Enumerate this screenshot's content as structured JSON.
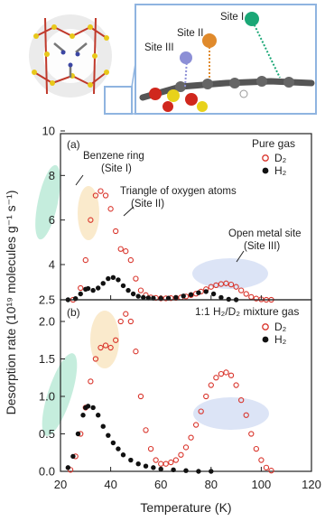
{
  "inset": {
    "site_labels": [
      "Site I",
      "Site II",
      "Site III"
    ],
    "colors": {
      "site_I": "#1aa776",
      "site_II": "#e08a2c",
      "site_III": "#8c8fd6",
      "frame": "#8fb4e0"
    }
  },
  "axes": {
    "xlabel": "Temperature (K)",
    "ylabel": "Desorption rate (10¹⁹ molecules g⁻¹ s⁻¹)",
    "xlim": [
      20,
      120
    ],
    "xticks": [
      "20",
      "40",
      "60",
      "80",
      "100",
      "120"
    ]
  },
  "panel_a": {
    "tag": "(a)",
    "legend_title": "Pure gas",
    "legend_d2": "D₂",
    "legend_h2": "H₂",
    "annotations": {
      "benzene": "Benzene ring",
      "site1": "(Site I)",
      "triangle": "Triangle of oxygen atoms",
      "site2": "(Site II)",
      "openmetal": "Open metal site",
      "site3": "(Site III)"
    },
    "yticks": [
      "2.5",
      "4",
      "6",
      "8",
      "10"
    ]
  },
  "panel_b": {
    "tag": "(b)",
    "legend_title": "1:1 H₂/D₂ mixture gas",
    "legend_d2": "D₂",
    "legend_h2": "H₂",
    "yticks": [
      "0.0",
      "0.5",
      "1.0",
      "1.5",
      "2.0"
    ]
  },
  "chart_data": [
    {
      "type": "scatter",
      "panel": "a",
      "xlim": [
        20,
        120
      ],
      "ylim": [
        2.5,
        10
      ],
      "y_scale": "broken: 2.5–4 expanded, 4–10 linear",
      "series": [
        {
          "name": "D₂",
          "marker": "open-circle",
          "color": "#d9342b",
          "x": [
            25,
            28,
            30,
            32,
            34,
            36,
            38,
            40,
            42,
            44,
            46,
            48,
            50,
            52,
            54,
            56,
            58,
            60,
            62,
            64,
            66,
            68,
            70,
            72,
            74,
            76,
            78,
            80,
            82,
            84,
            86,
            88,
            90,
            92,
            94,
            96,
            98,
            100,
            102,
            104
          ],
          "y": [
            2.5,
            3.0,
            4.2,
            6.0,
            7.1,
            7.3,
            7.1,
            6.5,
            5.5,
            4.7,
            4.6,
            4.2,
            3.4,
            2.9,
            2.7,
            2.6,
            2.58,
            2.56,
            2.56,
            2.57,
            2.58,
            2.6,
            2.64,
            2.7,
            2.76,
            2.85,
            2.95,
            3.05,
            3.12,
            3.17,
            3.2,
            3.15,
            3.05,
            2.9,
            2.75,
            2.62,
            2.55,
            2.52,
            2.5,
            2.5
          ]
        },
        {
          "name": "H₂",
          "marker": "filled-circle",
          "color": "#111111",
          "x": [
            23,
            26,
            28,
            30,
            31,
            33,
            35,
            37,
            39,
            41,
            43,
            45,
            47,
            49,
            51,
            53,
            55,
            57,
            60,
            63,
            66,
            69,
            72,
            75,
            78,
            81,
            84,
            87,
            90
          ],
          "y": [
            2.5,
            2.55,
            2.75,
            2.95,
            2.98,
            2.9,
            3.0,
            3.2,
            3.4,
            3.45,
            3.35,
            3.1,
            2.9,
            2.75,
            2.65,
            2.6,
            2.58,
            2.57,
            2.56,
            2.57,
            2.6,
            2.66,
            2.72,
            2.8,
            2.85,
            2.75,
            2.6,
            2.52,
            2.5
          ]
        }
      ]
    },
    {
      "type": "scatter",
      "panel": "b",
      "xlim": [
        20,
        120
      ],
      "ylim": [
        0,
        2.4
      ],
      "series": [
        {
          "name": "D₂",
          "marker": "open-circle",
          "color": "#d9342b",
          "x": [
            24,
            26,
            28,
            30,
            32,
            34,
            36,
            38,
            40,
            42,
            44,
            46,
            48,
            50,
            52,
            54,
            56,
            58,
            60,
            62,
            64,
            66,
            68,
            70,
            72,
            74,
            76,
            78,
            80,
            82,
            84,
            86,
            88,
            90,
            92,
            94,
            96,
            98,
            100,
            102,
            104
          ],
          "y": [
            0.02,
            0.2,
            0.5,
            0.85,
            1.2,
            1.5,
            1.65,
            1.68,
            1.65,
            1.75,
            2.0,
            2.1,
            2.0,
            1.6,
            1.0,
            0.55,
            0.3,
            0.15,
            0.1,
            0.1,
            0.12,
            0.15,
            0.22,
            0.32,
            0.45,
            0.62,
            0.8,
            1.0,
            1.15,
            1.25,
            1.3,
            1.32,
            1.28,
            1.15,
            0.95,
            0.75,
            0.5,
            0.3,
            0.15,
            0.05,
            0.01
          ]
        },
        {
          "name": "H₂",
          "marker": "filled-circle",
          "color": "#111111",
          "x": [
            23,
            25,
            27,
            29,
            30,
            31,
            33,
            35,
            37,
            39,
            41,
            43,
            45,
            48,
            51,
            54,
            57,
            60,
            65,
            70,
            75,
            80
          ],
          "y": [
            0.05,
            0.2,
            0.5,
            0.75,
            0.85,
            0.87,
            0.85,
            0.75,
            0.6,
            0.48,
            0.38,
            0.3,
            0.22,
            0.15,
            0.1,
            0.07,
            0.05,
            0.03,
            0.02,
            0.01,
            0.0,
            0.0
          ]
        }
      ]
    }
  ]
}
